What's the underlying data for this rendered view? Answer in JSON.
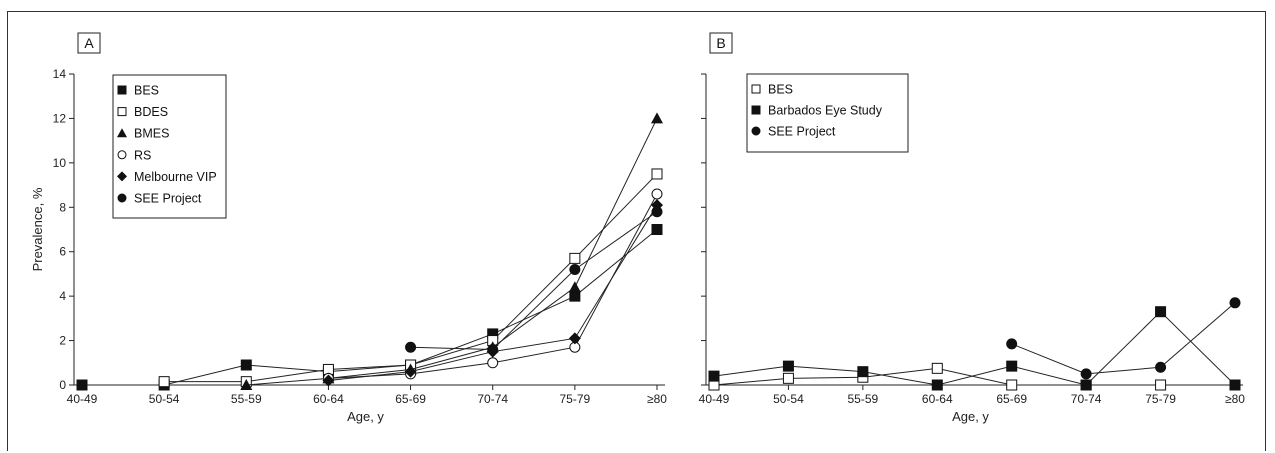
{
  "chart_data": [
    {
      "type": "line",
      "panel_label": "A",
      "xlabel": "Age, y",
      "ylabel": "Prevalence, %",
      "categories": [
        "40-49",
        "50-54",
        "55-59",
        "60-64",
        "65-69",
        "70-74",
        "75-79",
        "≥80"
      ],
      "ylim": [
        0,
        14
      ],
      "yticks": [
        0,
        2,
        4,
        6,
        8,
        10,
        12,
        14
      ],
      "legend_position": "top-left",
      "series": [
        {
          "name": "BES",
          "marker": "square-filled",
          "values": [
            0,
            0,
            0.9,
            0.6,
            0.9,
            2.3,
            4.0,
            7.0
          ]
        },
        {
          "name": "BDES",
          "marker": "square-open",
          "values": [
            null,
            0.15,
            0.15,
            0.7,
            0.9,
            2.0,
            5.7,
            9.5
          ]
        },
        {
          "name": "BMES",
          "marker": "triangle-filled",
          "values": [
            null,
            null,
            0,
            0.3,
            0.7,
            1.7,
            4.4,
            12.0
          ]
        },
        {
          "name": "RS",
          "marker": "circle-open",
          "values": [
            null,
            null,
            null,
            0.3,
            0.5,
            1.0,
            1.7,
            8.6
          ]
        },
        {
          "name": "Melbourne VIP",
          "marker": "diamond-filled",
          "values": [
            null,
            null,
            null,
            0.2,
            0.6,
            1.5,
            2.1,
            8.1
          ]
        },
        {
          "name": "SEE Project",
          "marker": "circle-filled",
          "values": [
            null,
            null,
            null,
            null,
            1.7,
            1.6,
            5.2,
            7.8
          ]
        }
      ]
    },
    {
      "type": "line",
      "panel_label": "B",
      "xlabel": "Age, y",
      "ylabel": "",
      "categories": [
        "40-49",
        "50-54",
        "55-59",
        "60-64",
        "65-69",
        "70-74",
        "75-79",
        "≥80"
      ],
      "ylim": [
        0,
        14
      ],
      "yticks": [
        0,
        2,
        4,
        6,
        8,
        10,
        12,
        14
      ],
      "legend_position": "top-left",
      "series": [
        {
          "name": "BES",
          "marker": "square-open",
          "values": [
            0,
            0.3,
            0.35,
            0.75,
            0,
            0,
            0,
            0
          ]
        },
        {
          "name": "Barbados Eye Study",
          "marker": "square-filled",
          "values": [
            0.4,
            0.85,
            0.6,
            0,
            0.85,
            0,
            3.3,
            0
          ]
        },
        {
          "name": "SEE Project",
          "marker": "circle-filled",
          "values": [
            null,
            null,
            null,
            null,
            1.85,
            0.5,
            0.8,
            3.7
          ]
        }
      ]
    }
  ]
}
